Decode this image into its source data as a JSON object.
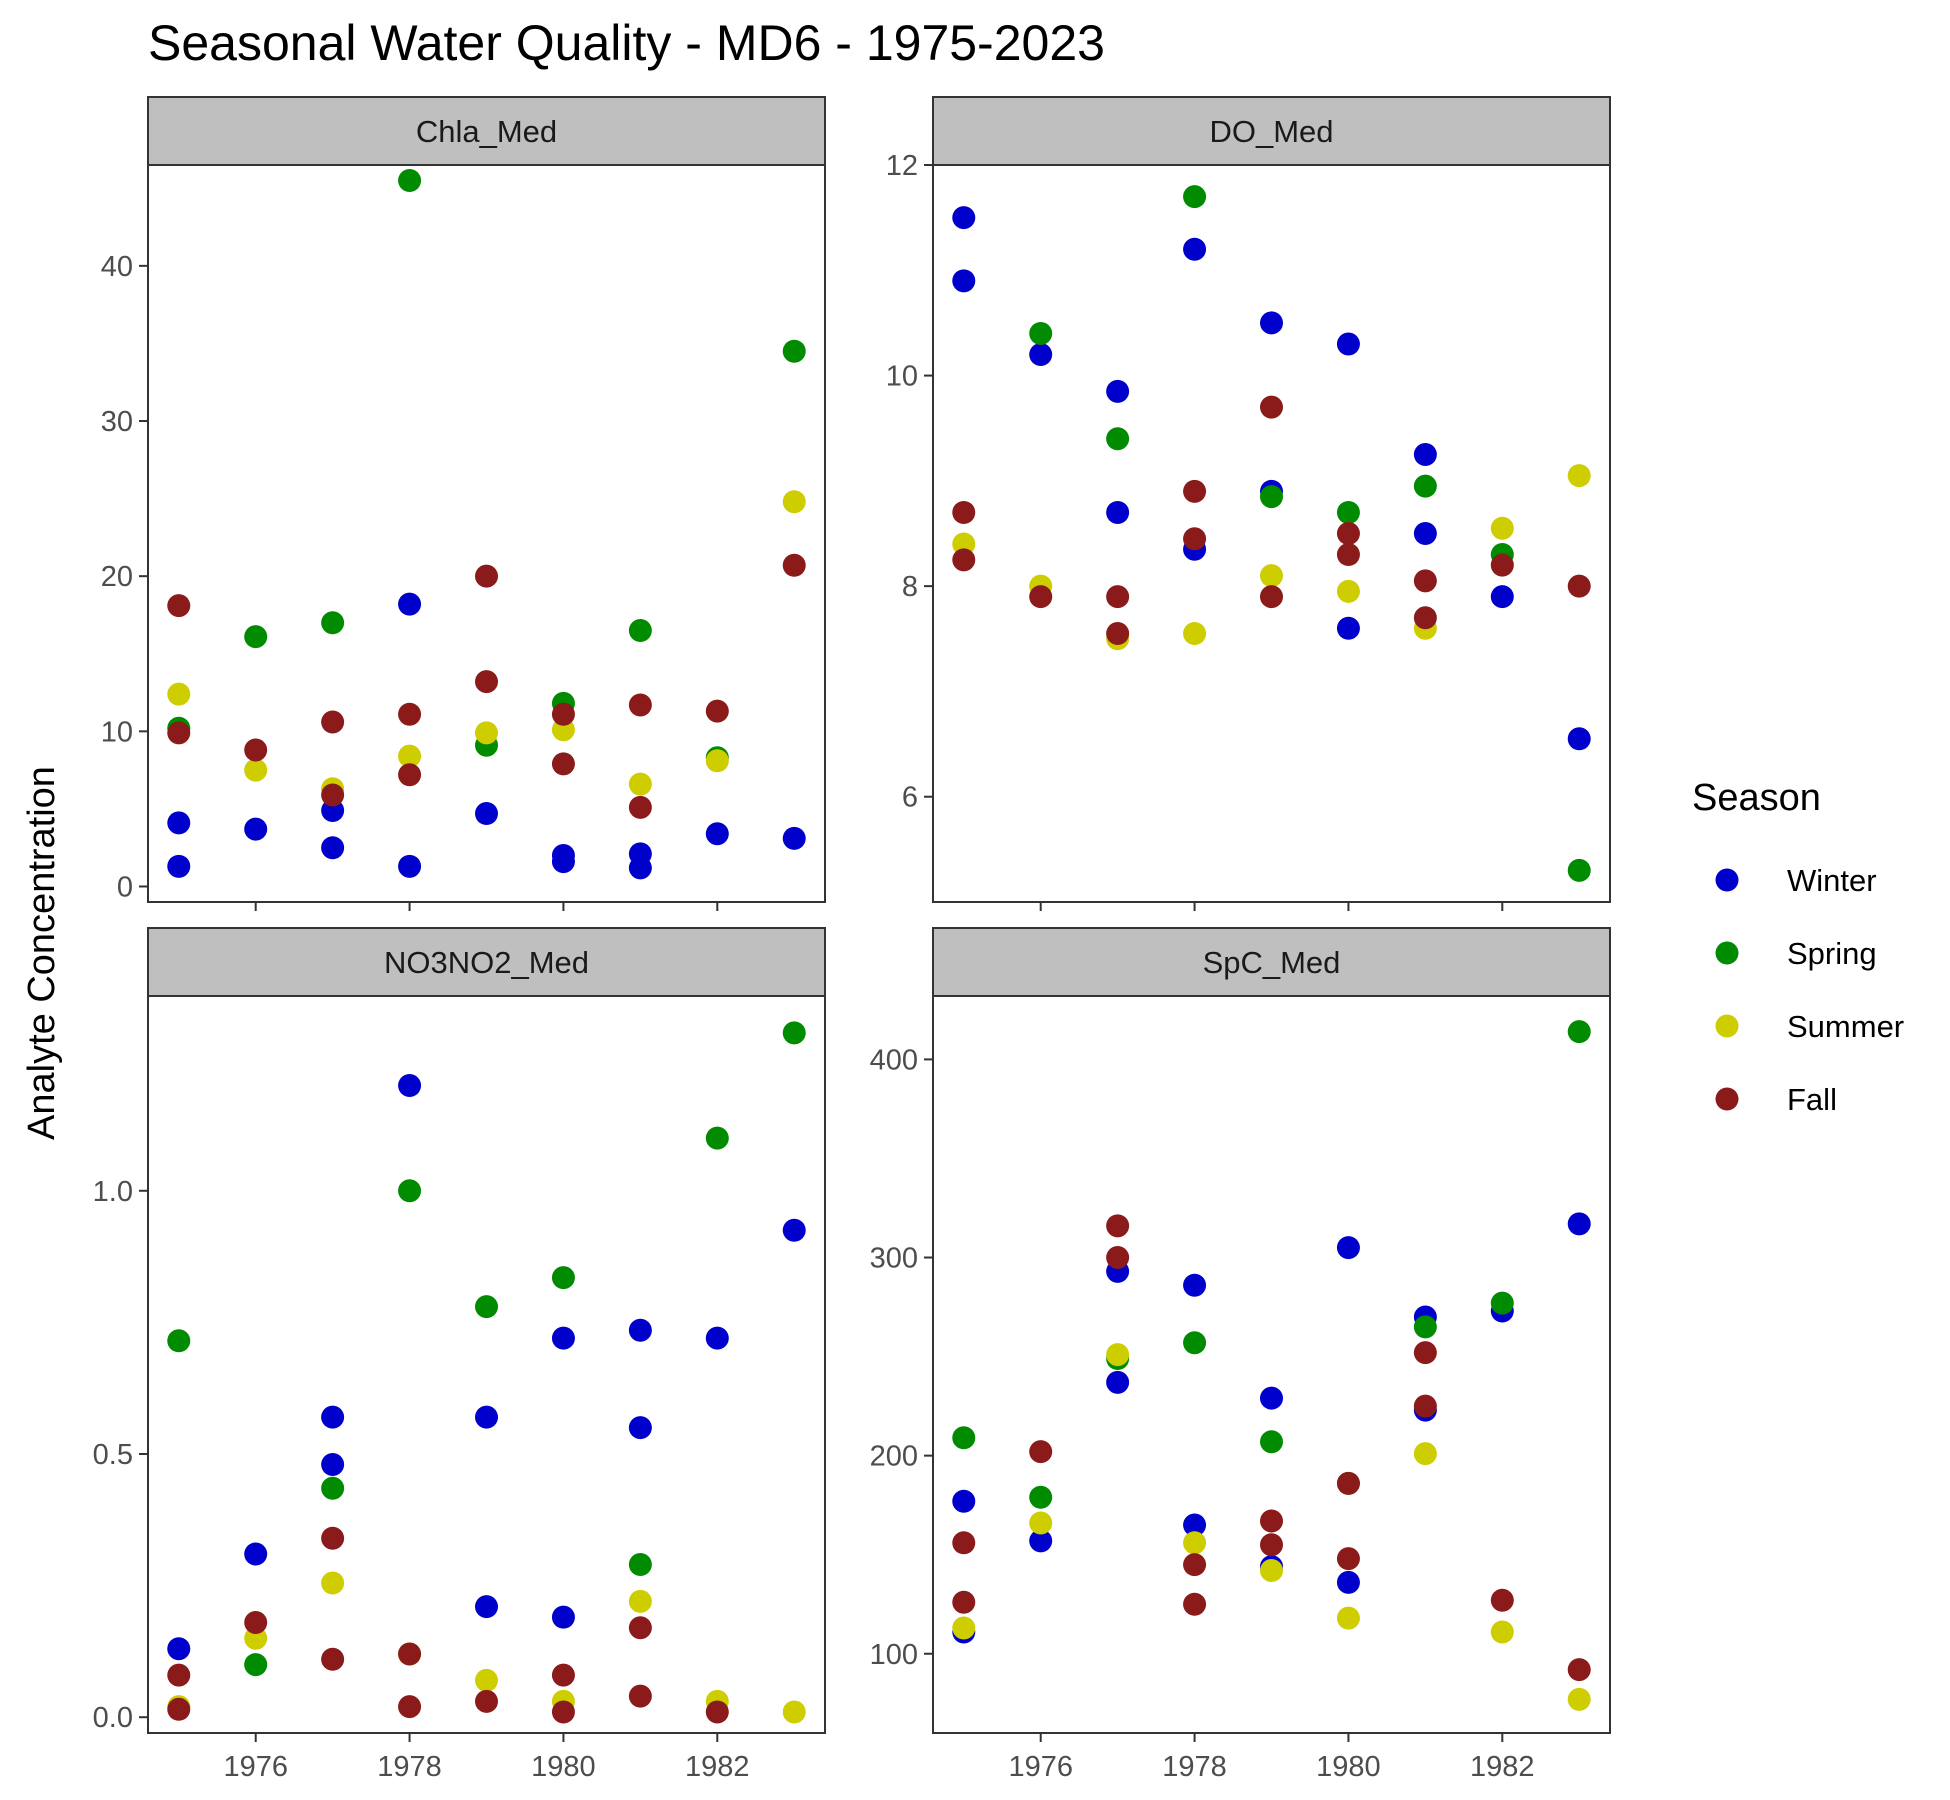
{
  "chart_data": {
    "type": "scatter",
    "title": "Seasonal Water Quality - MD6 - 1975-2023",
    "ylabel": "Analyte Concentration",
    "xlabel": "",
    "x_ticks": [
      1976,
      1978,
      1980,
      1982
    ],
    "xlim": [
      1974.6,
      1983.4
    ],
    "grid": false,
    "legend": {
      "title": "Season",
      "placement": "right",
      "entries": [
        {
          "name": "Winter",
          "color": "#0000cd"
        },
        {
          "name": "Spring",
          "color": "#008b00"
        },
        {
          "name": "Summer",
          "color": "#cdcd00"
        },
        {
          "name": "Fall",
          "color": "#8b1a1a"
        }
      ]
    },
    "panels": [
      {
        "strip": "Chla_Med",
        "ylim": [
          -1,
          46.5
        ],
        "y_ticks": [
          0,
          10,
          20,
          30,
          40
        ],
        "series": [
          {
            "season": "Winter",
            "points": [
              [
                1975,
                4.1
              ],
              [
                1975,
                1.3
              ],
              [
                1976,
                3.7
              ],
              [
                1977,
                4.9
              ],
              [
                1977,
                2.5
              ],
              [
                1978,
                18.2
              ],
              [
                1978,
                1.3
              ],
              [
                1979,
                4.7
              ],
              [
                1980,
                2.0
              ],
              [
                1980,
                1.6
              ],
              [
                1981,
                2.1
              ],
              [
                1981,
                1.2
              ],
              [
                1982,
                3.4
              ],
              [
                1983,
                3.1
              ]
            ]
          },
          {
            "season": "Spring",
            "points": [
              [
                1975,
                10.2
              ],
              [
                1976,
                16.1
              ],
              [
                1977,
                17.0
              ],
              [
                1978,
                45.5
              ],
              [
                1979,
                9.1
              ],
              [
                1980,
                11.8
              ],
              [
                1981,
                16.5
              ],
              [
                1982,
                8.3
              ],
              [
                1983,
                34.5
              ]
            ]
          },
          {
            "season": "Summer",
            "points": [
              [
                1975,
                12.4
              ],
              [
                1976,
                7.5
              ],
              [
                1977,
                6.3
              ],
              [
                1978,
                8.4
              ],
              [
                1979,
                9.9
              ],
              [
                1980,
                10.1
              ],
              [
                1981,
                6.6
              ],
              [
                1982,
                8.1
              ],
              [
                1983,
                24.8
              ]
            ]
          },
          {
            "season": "Fall",
            "points": [
              [
                1975,
                18.1
              ],
              [
                1975,
                9.9
              ],
              [
                1976,
                8.8
              ],
              [
                1977,
                10.6
              ],
              [
                1977,
                5.9
              ],
              [
                1978,
                11.1
              ],
              [
                1978,
                7.2
              ],
              [
                1979,
                20.0
              ],
              [
                1979,
                13.2
              ],
              [
                1980,
                11.1
              ],
              [
                1980,
                7.9
              ],
              [
                1981,
                11.7
              ],
              [
                1981,
                5.1
              ],
              [
                1982,
                11.3
              ],
              [
                1983,
                20.7
              ]
            ]
          }
        ]
      },
      {
        "strip": "DO_Med",
        "ylim": [
          5.0,
          12.0
        ],
        "y_ticks": [
          6,
          8,
          10,
          12
        ],
        "series": [
          {
            "season": "Winter",
            "points": [
              [
                1975,
                11.5
              ],
              [
                1975,
                10.9
              ],
              [
                1976,
                10.2
              ],
              [
                1977,
                9.85
              ],
              [
                1977,
                8.7
              ],
              [
                1978,
                11.2
              ],
              [
                1978,
                8.35
              ],
              [
                1979,
                10.5
              ],
              [
                1979,
                8.9
              ],
              [
                1980,
                10.3
              ],
              [
                1980,
                7.6
              ],
              [
                1981,
                9.25
              ],
              [
                1981,
                8.5
              ],
              [
                1982,
                7.9
              ],
              [
                1983,
                6.55
              ]
            ]
          },
          {
            "season": "Spring",
            "points": [
              [
                1976,
                10.4
              ],
              [
                1977,
                9.4
              ],
              [
                1978,
                11.7
              ],
              [
                1979,
                8.85
              ],
              [
                1980,
                8.7
              ],
              [
                1981,
                8.95
              ],
              [
                1982,
                8.3
              ],
              [
                1983,
                5.3
              ]
            ]
          },
          {
            "season": "Summer",
            "points": [
              [
                1975,
                8.4
              ],
              [
                1976,
                8.0
              ],
              [
                1977,
                7.5
              ],
              [
                1978,
                7.55
              ],
              [
                1979,
                8.1
              ],
              [
                1980,
                7.95
              ],
              [
                1981,
                7.6
              ],
              [
                1982,
                8.55
              ],
              [
                1983,
                9.05
              ]
            ]
          },
          {
            "season": "Fall",
            "points": [
              [
                1975,
                8.7
              ],
              [
                1975,
                8.25
              ],
              [
                1976,
                7.9
              ],
              [
                1977,
                7.9
              ],
              [
                1977,
                7.55
              ],
              [
                1978,
                8.9
              ],
              [
                1978,
                8.45
              ],
              [
                1979,
                9.7
              ],
              [
                1979,
                7.9
              ],
              [
                1980,
                8.5
              ],
              [
                1980,
                8.3
              ],
              [
                1981,
                8.05
              ],
              [
                1981,
                7.7
              ],
              [
                1982,
                8.2
              ],
              [
                1983,
                8.0
              ]
            ]
          }
        ]
      },
      {
        "strip": "NO3NO2_Med",
        "ylim": [
          -0.03,
          1.37
        ],
        "y_ticks": [
          0.0,
          0.5,
          1.0
        ],
        "y_tick_labels": [
          "0.0",
          "0.5",
          "1.0"
        ],
        "series": [
          {
            "season": "Winter",
            "points": [
              [
                1975,
                0.13
              ],
              [
                1976,
                0.31
              ],
              [
                1977,
                0.57
              ],
              [
                1977,
                0.48
              ],
              [
                1978,
                1.2
              ],
              [
                1979,
                0.57
              ],
              [
                1979,
                0.21
              ],
              [
                1980,
                0.72
              ],
              [
                1980,
                0.19
              ],
              [
                1981,
                0.735
              ],
              [
                1981,
                0.55
              ],
              [
                1982,
                0.72
              ],
              [
                1983,
                0.925
              ]
            ]
          },
          {
            "season": "Spring",
            "points": [
              [
                1975,
                0.715
              ],
              [
                1976,
                0.1
              ],
              [
                1977,
                0.435
              ],
              [
                1978,
                1.0
              ],
              [
                1979,
                0.78
              ],
              [
                1980,
                0.835
              ],
              [
                1981,
                0.29
              ],
              [
                1982,
                1.1
              ],
              [
                1983,
                1.3
              ]
            ]
          },
          {
            "season": "Summer",
            "points": [
              [
                1975,
                0.02
              ],
              [
                1976,
                0.15
              ],
              [
                1977,
                0.255
              ],
              [
                1978,
                0.12
              ],
              [
                1979,
                0.07
              ],
              [
                1980,
                0.03
              ],
              [
                1981,
                0.22
              ],
              [
                1982,
                0.03
              ],
              [
                1983,
                0.01
              ]
            ]
          },
          {
            "season": "Fall",
            "points": [
              [
                1975,
                0.08
              ],
              [
                1975,
                0.015
              ],
              [
                1976,
                0.18
              ],
              [
                1977,
                0.34
              ],
              [
                1977,
                0.11
              ],
              [
                1978,
                0.12
              ],
              [
                1978,
                0.02
              ],
              [
                1979,
                0.03
              ],
              [
                1980,
                0.08
              ],
              [
                1980,
                0.01
              ],
              [
                1981,
                0.17
              ],
              [
                1981,
                0.04
              ],
              [
                1982,
                0.01
              ]
            ]
          }
        ]
      },
      {
        "strip": "SpC_Med",
        "ylim": [
          60,
          432
        ],
        "y_ticks": [
          100,
          200,
          300,
          400
        ],
        "series": [
          {
            "season": "Winter",
            "points": [
              [
                1975,
                177
              ],
              [
                1975,
                111
              ],
              [
                1976,
                157
              ],
              [
                1977,
                293
              ],
              [
                1977,
                237
              ],
              [
                1978,
                286
              ],
              [
                1978,
                165
              ],
              [
                1979,
                229
              ],
              [
                1979,
                144
              ],
              [
                1980,
                305
              ],
              [
                1980,
                136
              ],
              [
                1981,
                270
              ],
              [
                1981,
                223
              ],
              [
                1982,
                273
              ],
              [
                1983,
                317
              ]
            ]
          },
          {
            "season": "Spring",
            "points": [
              [
                1975,
                209
              ],
              [
                1976,
                179
              ],
              [
                1977,
                249
              ],
              [
                1978,
                257
              ],
              [
                1979,
                207
              ],
              [
                1980,
                186
              ],
              [
                1981,
                265
              ],
              [
                1982,
                277
              ],
              [
                1983,
                414
              ]
            ]
          },
          {
            "season": "Summer",
            "points": [
              [
                1975,
                113
              ],
              [
                1976,
                166
              ],
              [
                1977,
                251
              ],
              [
                1978,
                156
              ],
              [
                1979,
                142
              ],
              [
                1980,
                118
              ],
              [
                1981,
                201
              ],
              [
                1982,
                111
              ],
              [
                1983,
                77
              ]
            ]
          },
          {
            "season": "Fall",
            "points": [
              [
                1975,
                156
              ],
              [
                1975,
                126
              ],
              [
                1976,
                202
              ],
              [
                1977,
                316
              ],
              [
                1977,
                300
              ],
              [
                1978,
                145
              ],
              [
                1978,
                125
              ],
              [
                1979,
                167
              ],
              [
                1979,
                155
              ],
              [
                1980,
                186
              ],
              [
                1980,
                148
              ],
              [
                1981,
                252
              ],
              [
                1981,
                225
              ],
              [
                1982,
                127
              ],
              [
                1983,
                92
              ]
            ]
          }
        ]
      }
    ]
  }
}
